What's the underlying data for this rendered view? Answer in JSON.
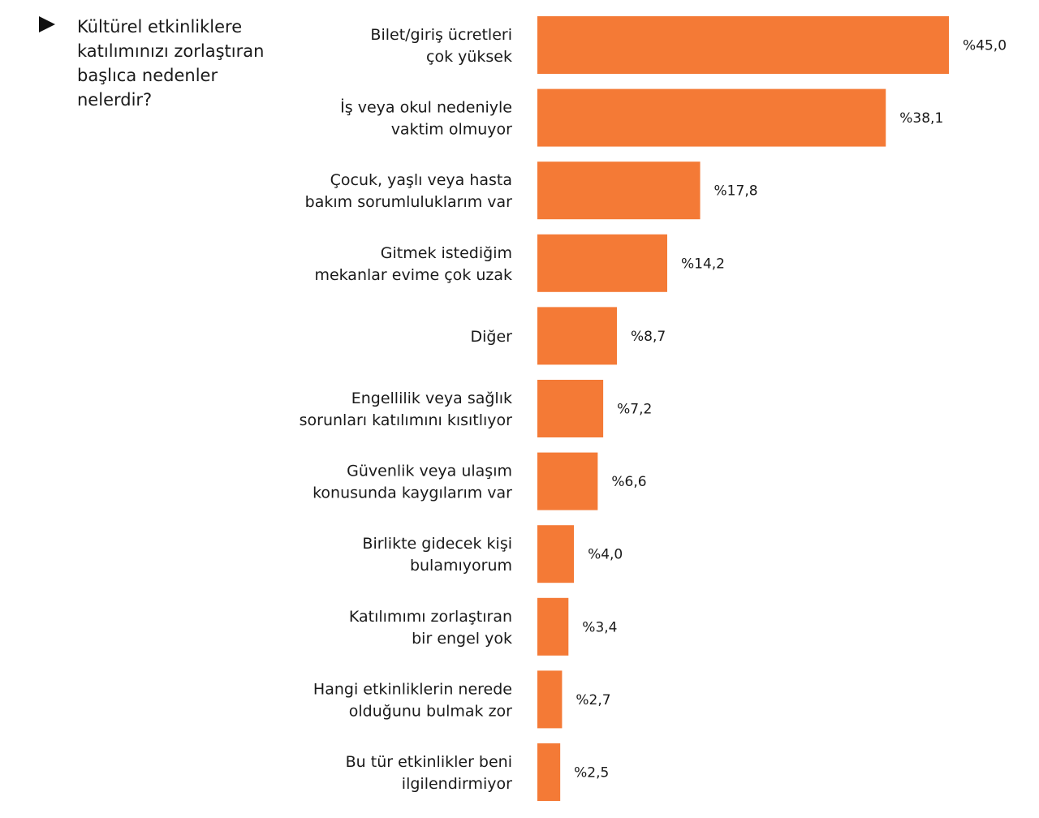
{
  "question": {
    "text": "Kültürel etkinliklere katılımınızı zorlaştıran başlıca nedenler nelerdir?"
  },
  "colors": {
    "bar": "#f47a36",
    "text": "#1a1a1a"
  },
  "chart_data": {
    "type": "bar",
    "orientation": "horizontal",
    "categories": [
      [
        "Bilet/giriş ücretleri",
        "çok yüksek"
      ],
      [
        "İş veya okul nedeniyle",
        "vaktim olmuyor"
      ],
      [
        "Çocuk, yaşlı veya hasta",
        "bakım sorumluluklarım var"
      ],
      [
        "Gitmek istediğim",
        "mekanlar evime çok uzak"
      ],
      [
        "Diğer"
      ],
      [
        "Engellilik veya sağlık",
        "sorunları katılımını kısıtlıyor"
      ],
      [
        "Güvenlik veya ulaşım",
        "konusunda kaygılarım var"
      ],
      [
        "Birlikte  gidecek kişi",
        "bulamıyorum"
      ],
      [
        "Katılımımı zorlaştıran",
        "bir engel yok"
      ],
      [
        "Hangi etkinliklerin nerede",
        "olduğunu bulmak zor"
      ],
      [
        "Bu tür etkinlikler beni",
        "ilgilendirmiyor"
      ]
    ],
    "values": [
      45.0,
      38.1,
      17.8,
      14.2,
      8.7,
      7.2,
      6.6,
      4.0,
      3.4,
      2.7,
      2.5
    ],
    "value_labels": [
      "%45,0",
      "%38,1",
      "%17,8",
      "%14,2",
      "%8,7",
      "%7,2",
      "%6,6",
      "%4,0",
      "%3,4",
      "%2,7",
      "%2,5"
    ],
    "grid": false,
    "legend": "none"
  }
}
